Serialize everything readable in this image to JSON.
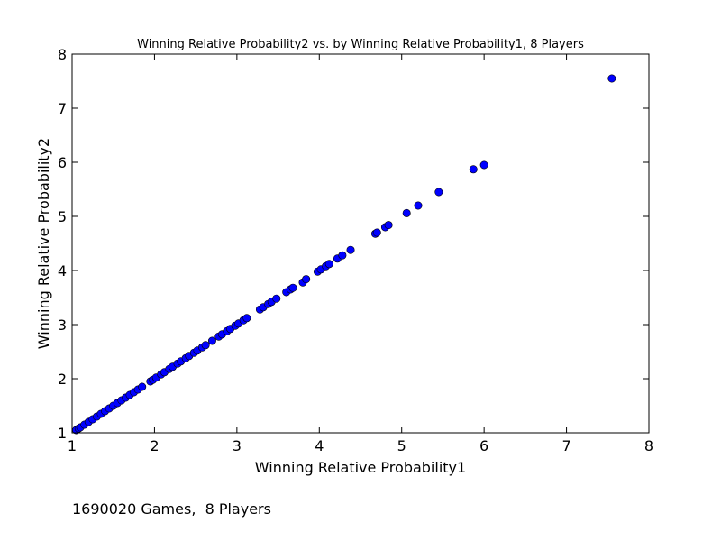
{
  "chart_data": {
    "type": "scatter",
    "title": "Winning Relative Probability2 vs. by Winning Relative Probability1, 8 Players",
    "xlabel": "Winning Relative Probability1",
    "ylabel": "Winning Relative Probability2",
    "xlim": [
      1,
      8
    ],
    "ylim": [
      1,
      8
    ],
    "xticks": [
      1,
      2,
      3,
      4,
      5,
      6,
      7,
      8
    ],
    "yticks": [
      1,
      2,
      3,
      4,
      5,
      6,
      7,
      8
    ],
    "grid": false,
    "marker_color": "#0000ff",
    "marker_edge_color": "#000000",
    "series": [
      {
        "x": [
          1.05,
          1.08,
          1.1,
          1.15,
          1.2,
          1.25,
          1.3,
          1.35,
          1.4,
          1.45,
          1.5,
          1.55,
          1.6,
          1.65,
          1.7,
          1.75,
          1.8,
          1.85,
          1.95,
          1.98,
          2.02,
          2.08,
          2.12,
          2.18,
          2.22,
          2.28,
          2.32,
          2.38,
          2.42,
          2.48,
          2.52,
          2.58,
          2.62,
          2.7,
          2.78,
          2.82,
          2.88,
          2.92,
          2.98,
          3.02,
          3.08,
          3.12,
          3.28,
          3.32,
          3.38,
          3.42,
          3.48,
          3.6,
          3.65,
          3.68,
          3.8,
          3.84,
          3.98,
          4.02,
          4.08,
          4.12,
          4.22,
          4.28,
          4.38,
          4.68,
          4.7,
          4.8,
          4.84,
          5.06,
          5.2,
          5.45,
          5.87,
          6.0,
          7.55
        ],
        "y": [
          1.05,
          1.08,
          1.1,
          1.15,
          1.2,
          1.25,
          1.3,
          1.35,
          1.4,
          1.45,
          1.5,
          1.55,
          1.6,
          1.65,
          1.7,
          1.75,
          1.8,
          1.85,
          1.95,
          1.98,
          2.02,
          2.08,
          2.12,
          2.18,
          2.22,
          2.28,
          2.32,
          2.38,
          2.42,
          2.48,
          2.52,
          2.58,
          2.62,
          2.7,
          2.78,
          2.82,
          2.88,
          2.92,
          2.98,
          3.02,
          3.08,
          3.12,
          3.28,
          3.32,
          3.38,
          3.42,
          3.48,
          3.6,
          3.65,
          3.68,
          3.78,
          3.84,
          3.98,
          4.02,
          4.08,
          4.12,
          4.22,
          4.28,
          4.38,
          4.68,
          4.7,
          4.8,
          4.84,
          5.06,
          5.2,
          5.45,
          5.87,
          5.95,
          7.55
        ]
      }
    ]
  },
  "footnote": "1690020 Games,  8 Players"
}
